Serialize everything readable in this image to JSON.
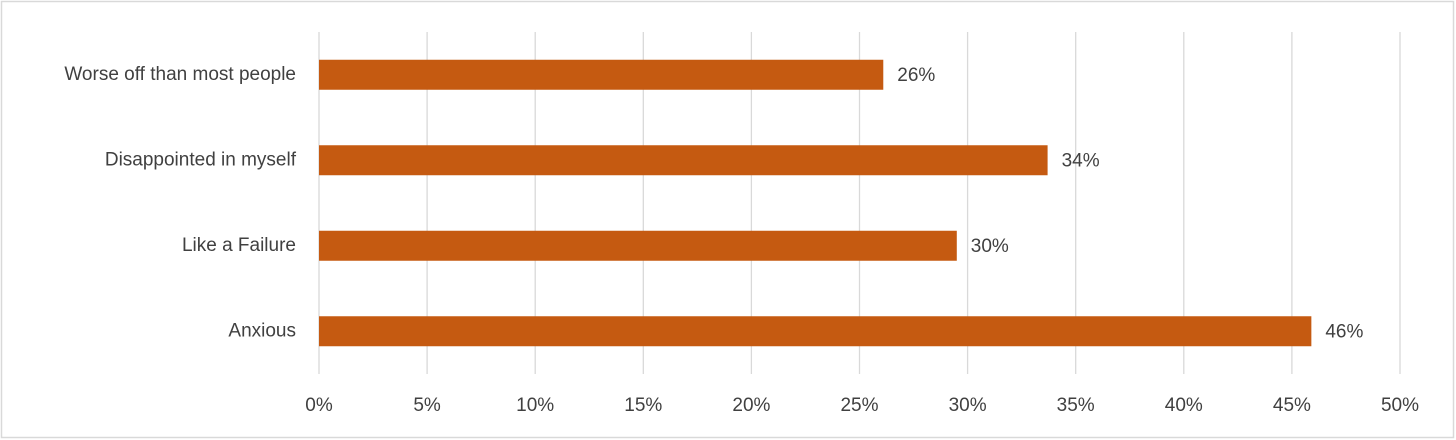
{
  "chart_data": {
    "type": "bar",
    "orientation": "horizontal",
    "categories": [
      "Worse off than most people",
      "Disappointed in myself",
      "Like a Failure",
      "Anxious"
    ],
    "values": [
      26.1,
      33.7,
      29.5,
      45.9
    ],
    "value_labels": [
      "26%",
      "34%",
      "30%",
      "46%"
    ],
    "color": "#c55a11",
    "xlim": [
      0,
      50
    ],
    "xticks": [
      {
        "value": 0,
        "label": "0%"
      },
      {
        "value": 5,
        "label": "5%"
      },
      {
        "value": 10,
        "label": "10%"
      },
      {
        "value": 15,
        "label": "15%"
      },
      {
        "value": 20,
        "label": "20%"
      },
      {
        "value": 25,
        "label": "25%"
      },
      {
        "value": 30,
        "label": "30%"
      },
      {
        "value": 35,
        "label": "35%"
      },
      {
        "value": 40,
        "label": "40%"
      },
      {
        "value": 45,
        "label": "45%"
      },
      {
        "value": 50,
        "label": "50%"
      }
    ],
    "grid": true
  }
}
